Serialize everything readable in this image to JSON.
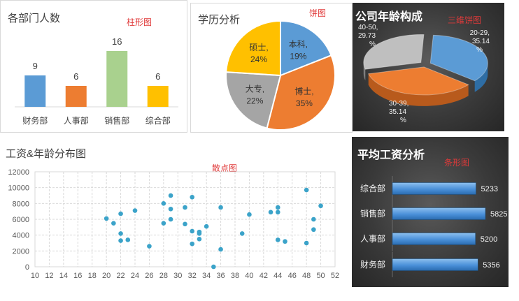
{
  "colors": {
    "blue": "#5b9bd5",
    "orange": "#ed7d31",
    "green": "#a9d18e",
    "gold": "#ffc000",
    "gray": "#a5a5a5",
    "tag": "#e03a3a",
    "dot": "#3ba3c9"
  },
  "charts": [
    {
      "id": "dept",
      "title": "各部门人数",
      "tag": "柱形图",
      "chart_data": {
        "type": "bar",
        "categories": [
          "财务部",
          "人事部",
          "销售部",
          "综合部"
        ],
        "values": [
          9,
          6,
          16,
          6
        ],
        "value_labels": [
          "9",
          "6",
          "16",
          "6"
        ]
      }
    },
    {
      "id": "edu",
      "title": "学历分析",
      "tag": "饼图",
      "chart_data": {
        "type": "pie",
        "slices": [
          {
            "label": "本科",
            "value": 19,
            "text": "19%"
          },
          {
            "label": "博士",
            "value": 35,
            "text": "35%"
          },
          {
            "label": "大专",
            "value": 22,
            "text": "22%"
          },
          {
            "label": "硕士",
            "value": 24,
            "text": "24%"
          }
        ]
      }
    },
    {
      "id": "age",
      "title": "公司年龄构成",
      "tag": "三维饼图",
      "chart_data": {
        "type": "pie",
        "slices": [
          {
            "label": "20-29",
            "value": 35.14,
            "text": "35.14"
          },
          {
            "label": "30-39",
            "value": 35.14,
            "text": "35.14"
          },
          {
            "label": "40-50",
            "value": 29.73,
            "text": "29.73"
          }
        ],
        "suffix": "%"
      }
    },
    {
      "id": "scatter",
      "title": "工资&年龄分布图",
      "tag": "散点图",
      "chart_data": {
        "type": "scatter",
        "xlim": [
          10,
          52
        ],
        "ylim": [
          0,
          12000
        ],
        "xticks": [
          "10",
          "12",
          "14",
          "16",
          "18",
          "20",
          "22",
          "24",
          "26",
          "28",
          "30",
          "32",
          "34",
          "36",
          "38",
          "40",
          "42",
          "44",
          "46",
          "48",
          "50",
          "52"
        ],
        "yticks": [
          "0",
          "2000",
          "4000",
          "6000",
          "8000",
          "10000",
          "12000"
        ],
        "points": [
          [
            20,
            6100
          ],
          [
            21,
            5500
          ],
          [
            22,
            6700
          ],
          [
            22,
            4200
          ],
          [
            22,
            3300
          ],
          [
            23,
            3400
          ],
          [
            24,
            7100
          ],
          [
            26,
            2600
          ],
          [
            28,
            8000
          ],
          [
            28,
            5500
          ],
          [
            29,
            9000
          ],
          [
            29,
            7300
          ],
          [
            29,
            6000
          ],
          [
            31,
            7500
          ],
          [
            31,
            5400
          ],
          [
            32,
            8800
          ],
          [
            32,
            4500
          ],
          [
            32,
            2900
          ],
          [
            33,
            4400
          ],
          [
            33,
            4200
          ],
          [
            33,
            3500
          ],
          [
            34,
            5100
          ],
          [
            35,
            0
          ],
          [
            36,
            7500
          ],
          [
            36,
            2200
          ],
          [
            39,
            4200
          ],
          [
            40,
            6600
          ],
          [
            43,
            6900
          ],
          [
            44,
            7500
          ],
          [
            44,
            6900
          ],
          [
            44,
            3400
          ],
          [
            45,
            3200
          ],
          [
            48,
            9700
          ],
          [
            48,
            3000
          ],
          [
            49,
            6000
          ],
          [
            49,
            4700
          ],
          [
            50,
            7700
          ]
        ]
      }
    },
    {
      "id": "salary",
      "title": "平均工资分析",
      "tag": "条形图",
      "chart_data": {
        "type": "bar",
        "orientation": "horizontal",
        "categories": [
          "综合部",
          "销售部",
          "人事部",
          "财务部"
        ],
        "values": [
          5233,
          5825,
          5200,
          5356
        ],
        "value_labels": [
          "5233",
          "5825",
          "5200",
          "5356"
        ]
      }
    }
  ]
}
